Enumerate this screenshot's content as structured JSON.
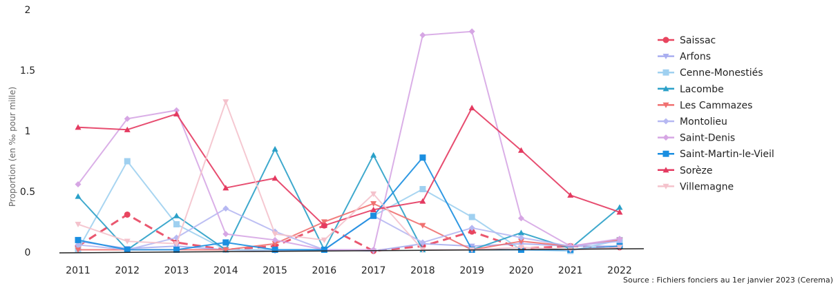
{
  "chart_data": {
    "type": "line",
    "title": "",
    "ylabel": "Proportion (en ‰ pour mille)",
    "xlabel": "",
    "x": [
      "2011",
      "2012",
      "2013",
      "2014",
      "2015",
      "2016",
      "2017",
      "2018",
      "2019",
      "2020",
      "2021",
      "2022"
    ],
    "ylim": [
      0,
      2
    ],
    "yticks": [
      {
        "value": 0,
        "label": "0"
      },
      {
        "value": 0.5,
        "label": "0.5"
      },
      {
        "value": 1,
        "label": "1"
      },
      {
        "value": 1.5,
        "label": "1.5"
      },
      {
        "value": 2,
        "label": "2"
      }
    ],
    "grid": false,
    "legend_position": "right",
    "source": "Source : Fichiers fonciers au 1er janvier 2023 (Cerema)",
    "series": [
      {
        "name": "Saissac",
        "color": "#e8455f",
        "marker": "circle",
        "dash": true,
        "values": [
          0.05,
          0.31,
          0.08,
          0.02,
          0.05,
          0.22,
          0.01,
          0.05,
          0.17,
          0.03,
          0.05,
          0.04
        ]
      },
      {
        "name": "Arfons",
        "color": "#a9aef0",
        "marker": "triangle-down",
        "dash": false,
        "values": [
          0.09,
          0.03,
          0.05,
          0.02,
          0.01,
          0.02,
          0.01,
          0.07,
          0.05,
          0.07,
          0.05,
          0.05
        ]
      },
      {
        "name": "Cenne-Monestiés",
        "color": "#9fd0f0",
        "marker": "square",
        "dash": false,
        "values": [
          0.02,
          0.75,
          0.23,
          0.02,
          0.02,
          0.02,
          0.3,
          0.52,
          0.29,
          0.02,
          0.01,
          0.1
        ]
      },
      {
        "name": "Lacombe",
        "color": "#2aa0c8",
        "marker": "triangle-up",
        "dash": false,
        "values": [
          0.46,
          0.02,
          0.3,
          0.02,
          0.85,
          0.02,
          0.8,
          0.02,
          0.02,
          0.16,
          0.03,
          0.37
        ]
      },
      {
        "name": "Les Cammazes",
        "color": "#f07070",
        "marker": "triangle-down",
        "dash": false,
        "values": [
          0.02,
          0.02,
          0.02,
          0.02,
          0.07,
          0.25,
          0.4,
          0.22,
          0.02,
          0.09,
          0.05,
          0.1
        ]
      },
      {
        "name": "Montolieu",
        "color": "#b6b8f2",
        "marker": "diamond",
        "dash": false,
        "values": [
          0.06,
          0.02,
          0.12,
          0.36,
          0.17,
          0.02,
          0.3,
          0.08,
          0.2,
          0.12,
          0.05,
          0.09
        ]
      },
      {
        "name": "Saint-Denis",
        "color": "#d6a6e4",
        "marker": "diamond",
        "dash": false,
        "values": [
          0.56,
          1.1,
          1.17,
          0.15,
          0.1,
          0.02,
          0.02,
          1.79,
          1.82,
          0.28,
          0.05,
          0.11
        ]
      },
      {
        "name": "Saint-Martin-le-Vieil",
        "color": "#1a8ee0",
        "marker": "square",
        "dash": false,
        "values": [
          0.1,
          0.02,
          0.02,
          0.08,
          0.02,
          0.02,
          0.3,
          0.78,
          0.02,
          0.02,
          0.02,
          0.05
        ]
      },
      {
        "name": "Sorèze",
        "color": "#e43a60",
        "marker": "triangle-up",
        "dash": false,
        "values": [
          1.03,
          1.01,
          1.14,
          0.53,
          0.61,
          0.22,
          0.35,
          0.42,
          1.19,
          0.84,
          0.47,
          0.33
        ]
      },
      {
        "name": "Villemagne",
        "color": "#f4c2cc",
        "marker": "triangle-down",
        "dash": false,
        "values": [
          0.23,
          0.09,
          0.07,
          1.24,
          0.15,
          0.1,
          0.48,
          0.02,
          0.02,
          0.04,
          0.02,
          0.04
        ]
      }
    ]
  }
}
